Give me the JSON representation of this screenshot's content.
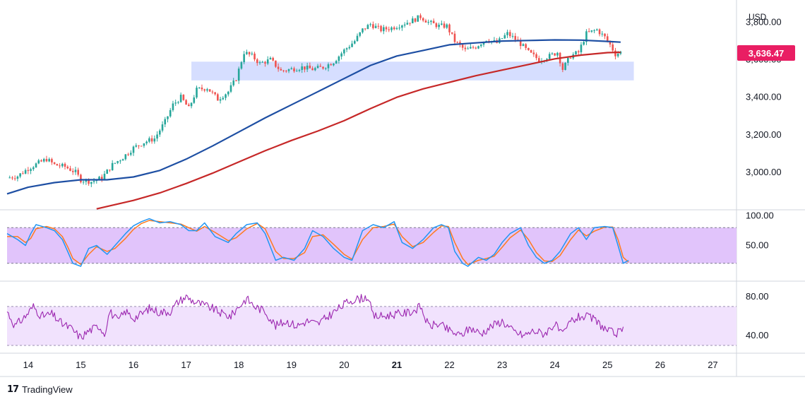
{
  "chart_data": {
    "type": "line",
    "instrument_quote_currency": "USD",
    "last_price_label": "3,636.47",
    "colors": {
      "up_candle": "#26a69a",
      "down_candle": "#ef5350",
      "ma_fast": "#1e4fa3",
      "ma_slow": "#c62828",
      "last_price_tag": "#e91e63",
      "support_zone": "#cfd8ff",
      "oscillator_band": "#e1c4fb",
      "rsi_band": "#f1e2fd",
      "stoch_k": "#2196f3",
      "stoch_d": "#ff7a1f",
      "rsi_line": "#9c27b0"
    },
    "x_axis": {
      "tick_labels": [
        "14",
        "15",
        "16",
        "17",
        "18",
        "19",
        "20",
        "21",
        "22",
        "23",
        "24",
        "25",
        "26",
        "27"
      ],
      "bold_label": "21",
      "range": [
        13.6,
        27.45
      ]
    },
    "price_panel": {
      "y_ticks": [
        "3,800.00",
        "3,600.00",
        "3,400.00",
        "3,200.00",
        "3,000.00"
      ],
      "tick_values": [
        3800,
        3600,
        3400,
        3200,
        3000
      ],
      "ylim": [
        2800,
        3900
      ],
      "support_zone": {
        "x_start": 17.1,
        "x_end": 25.5,
        "y_low": 3490,
        "y_high": 3590
      },
      "close_path": [
        [
          13.6,
          2970
        ],
        [
          13.8,
          2980
        ],
        [
          14.0,
          3020
        ],
        [
          14.2,
          3050
        ],
        [
          14.35,
          3070
        ],
        [
          14.5,
          3040
        ],
        [
          14.7,
          3030
        ],
        [
          14.9,
          3000
        ],
        [
          15.0,
          2960
        ],
        [
          15.2,
          2950
        ],
        [
          15.4,
          2970
        ],
        [
          15.6,
          3040
        ],
        [
          15.8,
          3080
        ],
        [
          16.0,
          3130
        ],
        [
          16.2,
          3160
        ],
        [
          16.4,
          3180
        ],
        [
          16.6,
          3270
        ],
        [
          16.75,
          3360
        ],
        [
          16.9,
          3400
        ],
        [
          17.05,
          3340
        ],
        [
          17.2,
          3440
        ],
        [
          17.4,
          3450
        ],
        [
          17.6,
          3390
        ],
        [
          17.8,
          3430
        ],
        [
          17.95,
          3500
        ],
        [
          18.1,
          3640
        ],
        [
          18.25,
          3620
        ],
        [
          18.4,
          3580
        ],
        [
          18.6,
          3600
        ],
        [
          18.8,
          3540
        ],
        [
          19.0,
          3550
        ],
        [
          19.2,
          3560
        ],
        [
          19.4,
          3550
        ],
        [
          19.6,
          3560
        ],
        [
          19.8,
          3590
        ],
        [
          20.0,
          3650
        ],
        [
          20.2,
          3700
        ],
        [
          20.35,
          3760
        ],
        [
          20.5,
          3790
        ],
        [
          20.7,
          3760
        ],
        [
          20.9,
          3770
        ],
        [
          21.1,
          3790
        ],
        [
          21.3,
          3810
        ],
        [
          21.45,
          3830
        ],
        [
          21.6,
          3800
        ],
        [
          21.8,
          3780
        ],
        [
          21.95,
          3780
        ],
        [
          22.1,
          3700
        ],
        [
          22.3,
          3650
        ],
        [
          22.5,
          3670
        ],
        [
          22.7,
          3710
        ],
        [
          22.9,
          3690
        ],
        [
          23.1,
          3740
        ],
        [
          23.3,
          3700
        ],
        [
          23.5,
          3640
        ],
        [
          23.7,
          3600
        ],
        [
          23.9,
          3620
        ],
        [
          24.05,
          3640
        ],
        [
          24.15,
          3550
        ],
        [
          24.3,
          3620
        ],
        [
          24.45,
          3640
        ],
        [
          24.6,
          3740
        ],
        [
          24.8,
          3760
        ],
        [
          24.95,
          3720
        ],
        [
          25.05,
          3680
        ],
        [
          25.15,
          3630
        ],
        [
          25.25,
          3640
        ]
      ],
      "ma_fast": {
        "values": [
          [
            13.6,
            2885
          ],
          [
            14.0,
            2920
          ],
          [
            14.5,
            2945
          ],
          [
            15.0,
            2960
          ],
          [
            15.5,
            2960
          ],
          [
            16.0,
            2975
          ],
          [
            16.5,
            3010
          ],
          [
            17.0,
            3070
          ],
          [
            17.5,
            3140
          ],
          [
            18.0,
            3215
          ],
          [
            18.5,
            3290
          ],
          [
            19.0,
            3360
          ],
          [
            19.5,
            3430
          ],
          [
            20.0,
            3500
          ],
          [
            20.5,
            3570
          ],
          [
            21.0,
            3620
          ],
          [
            21.5,
            3650
          ],
          [
            22.0,
            3680
          ],
          [
            22.5,
            3690
          ],
          [
            23.0,
            3700
          ],
          [
            23.5,
            3703
          ],
          [
            24.0,
            3706
          ],
          [
            24.5,
            3705
          ],
          [
            25.0,
            3698
          ],
          [
            25.25,
            3694
          ]
        ]
      },
      "ma_slow": {
        "values": [
          [
            15.3,
            2805
          ],
          [
            16.0,
            2850
          ],
          [
            16.5,
            2890
          ],
          [
            17.0,
            2940
          ],
          [
            17.5,
            2995
          ],
          [
            18.0,
            3055
          ],
          [
            18.5,
            3115
          ],
          [
            19.0,
            3170
          ],
          [
            19.5,
            3220
          ],
          [
            20.0,
            3275
          ],
          [
            20.5,
            3340
          ],
          [
            21.0,
            3400
          ],
          [
            21.5,
            3445
          ],
          [
            22.0,
            3480
          ],
          [
            22.5,
            3515
          ],
          [
            23.0,
            3545
          ],
          [
            23.5,
            3575
          ],
          [
            24.0,
            3605
          ],
          [
            24.5,
            3625
          ],
          [
            25.0,
            3638
          ],
          [
            25.25,
            3640
          ]
        ]
      }
    },
    "stochastic_panel": {
      "y_ticks": [
        "100.00",
        "50.00"
      ],
      "tick_values": [
        100,
        50
      ],
      "ylim": [
        -10,
        110
      ],
      "band": [
        20,
        80
      ],
      "k_values": [
        [
          13.6,
          70
        ],
        [
          13.8,
          60
        ],
        [
          13.95,
          50
        ],
        [
          14.05,
          70
        ],
        [
          14.15,
          85
        ],
        [
          14.35,
          80
        ],
        [
          14.5,
          75
        ],
        [
          14.65,
          60
        ],
        [
          14.75,
          40
        ],
        [
          14.85,
          20
        ],
        [
          15.0,
          15
        ],
        [
          15.15,
          45
        ],
        [
          15.3,
          50
        ],
        [
          15.5,
          35
        ],
        [
          15.65,
          50
        ],
        [
          15.85,
          70
        ],
        [
          16.0,
          83
        ],
        [
          16.15,
          90
        ],
        [
          16.3,
          95
        ],
        [
          16.5,
          88
        ],
        [
          16.7,
          90
        ],
        [
          16.9,
          85
        ],
        [
          17.05,
          75
        ],
        [
          17.2,
          75
        ],
        [
          17.35,
          88
        ],
        [
          17.55,
          65
        ],
        [
          17.8,
          55
        ],
        [
          17.95,
          70
        ],
        [
          18.15,
          85
        ],
        [
          18.35,
          88
        ],
        [
          18.5,
          70
        ],
        [
          18.7,
          25
        ],
        [
          18.85,
          30
        ],
        [
          19.05,
          25
        ],
        [
          19.25,
          45
        ],
        [
          19.4,
          75
        ],
        [
          19.6,
          65
        ],
        [
          19.8,
          45
        ],
        [
          20.0,
          30
        ],
        [
          20.15,
          25
        ],
        [
          20.35,
          75
        ],
        [
          20.55,
          85
        ],
        [
          20.75,
          80
        ],
        [
          20.95,
          90
        ],
        [
          21.1,
          55
        ],
        [
          21.3,
          45
        ],
        [
          21.5,
          60
        ],
        [
          21.7,
          80
        ],
        [
          21.85,
          85
        ],
        [
          21.98,
          80
        ],
        [
          22.1,
          40
        ],
        [
          22.25,
          20
        ],
        [
          22.35,
          15
        ],
        [
          22.55,
          30
        ],
        [
          22.7,
          25
        ],
        [
          22.85,
          35
        ],
        [
          23.0,
          55
        ],
        [
          23.15,
          70
        ],
        [
          23.35,
          80
        ],
        [
          23.5,
          50
        ],
        [
          23.65,
          30
        ],
        [
          23.8,
          20
        ],
        [
          23.95,
          25
        ],
        [
          24.1,
          40
        ],
        [
          24.3,
          70
        ],
        [
          24.45,
          80
        ],
        [
          24.6,
          60
        ],
        [
          24.75,
          80
        ],
        [
          24.95,
          82
        ],
        [
          25.1,
          80
        ],
        [
          25.2,
          50
        ],
        [
          25.3,
          20
        ],
        [
          25.4,
          25
        ]
      ],
      "d_values": [
        [
          13.6,
          65
        ],
        [
          13.8,
          65
        ],
        [
          13.95,
          55
        ],
        [
          14.05,
          62
        ],
        [
          14.15,
          78
        ],
        [
          14.35,
          82
        ],
        [
          14.5,
          78
        ],
        [
          14.65,
          65
        ],
        [
          14.75,
          48
        ],
        [
          14.85,
          28
        ],
        [
          15.0,
          18
        ],
        [
          15.15,
          35
        ],
        [
          15.3,
          48
        ],
        [
          15.5,
          40
        ],
        [
          15.65,
          45
        ],
        [
          15.85,
          62
        ],
        [
          16.0,
          77
        ],
        [
          16.15,
          87
        ],
        [
          16.3,
          92
        ],
        [
          16.5,
          90
        ],
        [
          16.7,
          88
        ],
        [
          16.9,
          86
        ],
        [
          17.05,
          80
        ],
        [
          17.2,
          74
        ],
        [
          17.35,
          82
        ],
        [
          17.55,
          72
        ],
        [
          17.8,
          58
        ],
        [
          17.95,
          63
        ],
        [
          18.15,
          78
        ],
        [
          18.35,
          87
        ],
        [
          18.5,
          78
        ],
        [
          18.7,
          40
        ],
        [
          18.85,
          28
        ],
        [
          19.05,
          28
        ],
        [
          19.25,
          38
        ],
        [
          19.4,
          65
        ],
        [
          19.6,
          68
        ],
        [
          19.8,
          52
        ],
        [
          20.0,
          35
        ],
        [
          20.15,
          27
        ],
        [
          20.35,
          60
        ],
        [
          20.55,
          80
        ],
        [
          20.75,
          82
        ],
        [
          20.95,
          86
        ],
        [
          21.1,
          65
        ],
        [
          21.3,
          48
        ],
        [
          21.5,
          55
        ],
        [
          21.7,
          72
        ],
        [
          21.85,
          83
        ],
        [
          21.98,
          82
        ],
        [
          22.1,
          55
        ],
        [
          22.25,
          28
        ],
        [
          22.35,
          18
        ],
        [
          22.55,
          25
        ],
        [
          22.7,
          28
        ],
        [
          22.85,
          32
        ],
        [
          23.0,
          47
        ],
        [
          23.15,
          63
        ],
        [
          23.35,
          76
        ],
        [
          23.5,
          60
        ],
        [
          23.65,
          38
        ],
        [
          23.8,
          24
        ],
        [
          23.95,
          23
        ],
        [
          24.1,
          33
        ],
        [
          24.3,
          60
        ],
        [
          24.45,
          76
        ],
        [
          24.6,
          66
        ],
        [
          24.75,
          74
        ],
        [
          24.95,
          81
        ],
        [
          25.1,
          81
        ],
        [
          25.2,
          60
        ],
        [
          25.3,
          30
        ],
        [
          25.4,
          22
        ]
      ]
    },
    "rsi_panel": {
      "y_ticks": [
        "80.00",
        "40.00"
      ],
      "tick_values": [
        80,
        40
      ],
      "ylim": [
        22,
        96
      ],
      "band": [
        30,
        70
      ],
      "values": [
        [
          13.6,
          65
        ],
        [
          13.75,
          50
        ],
        [
          13.95,
          60
        ],
        [
          14.1,
          70
        ],
        [
          14.25,
          60
        ],
        [
          14.45,
          62
        ],
        [
          14.65,
          52
        ],
        [
          14.8,
          48
        ],
        [
          15.0,
          38
        ],
        [
          15.15,
          45
        ],
        [
          15.35,
          50
        ],
        [
          15.45,
          42
        ],
        [
          15.55,
          65
        ],
        [
          15.7,
          55
        ],
        [
          15.85,
          65
        ],
        [
          16.0,
          58
        ],
        [
          16.15,
          62
        ],
        [
          16.3,
          68
        ],
        [
          16.5,
          64
        ],
        [
          16.7,
          65
        ],
        [
          16.85,
          75
        ],
        [
          17.0,
          80
        ],
        [
          17.15,
          75
        ],
        [
          17.3,
          72
        ],
        [
          17.5,
          68
        ],
        [
          17.7,
          62
        ],
        [
          17.85,
          60
        ],
        [
          18.0,
          70
        ],
        [
          18.15,
          78
        ],
        [
          18.3,
          70
        ],
        [
          18.5,
          65
        ],
        [
          18.7,
          50
        ],
        [
          18.9,
          55
        ],
        [
          19.1,
          50
        ],
        [
          19.3,
          55
        ],
        [
          19.5,
          52
        ],
        [
          19.7,
          60
        ],
        [
          19.9,
          68
        ],
        [
          20.1,
          76
        ],
        [
          20.3,
          78
        ],
        [
          20.45,
          80
        ],
        [
          20.55,
          60
        ],
        [
          20.75,
          60
        ],
        [
          20.95,
          62
        ],
        [
          21.15,
          63
        ],
        [
          21.3,
          65
        ],
        [
          21.45,
          70
        ],
        [
          21.6,
          50
        ],
        [
          21.8,
          52
        ],
        [
          22.0,
          45
        ],
        [
          22.2,
          40
        ],
        [
          22.4,
          48
        ],
        [
          22.6,
          42
        ],
        [
          22.8,
          50
        ],
        [
          23.0,
          55
        ],
        [
          23.2,
          45
        ],
        [
          23.4,
          40
        ],
        [
          23.6,
          45
        ],
        [
          23.8,
          42
        ],
        [
          24.0,
          52
        ],
        [
          24.15,
          40
        ],
        [
          24.3,
          55
        ],
        [
          24.5,
          60
        ],
        [
          24.7,
          58
        ],
        [
          24.85,
          52
        ],
        [
          25.0,
          45
        ],
        [
          25.15,
          42
        ],
        [
          25.3,
          45
        ]
      ]
    }
  },
  "branding": {
    "logo_glyph": "17",
    "name": "TradingView"
  }
}
